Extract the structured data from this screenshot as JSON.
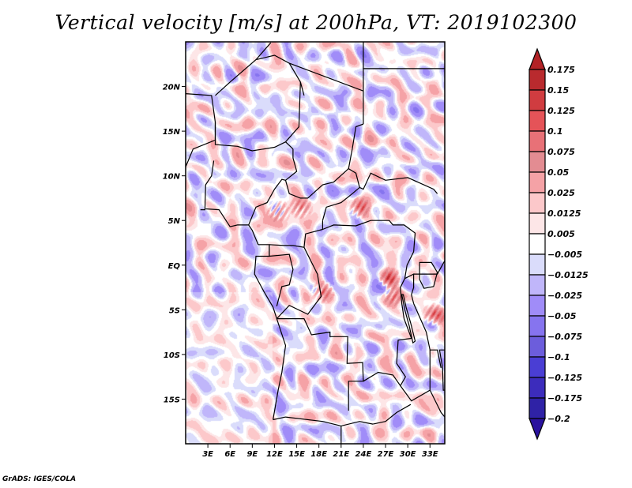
{
  "title": "Vertical velocity [m/s] at 200hPa, VT: 2019102300",
  "credit": "GrADS: IGES/COLA",
  "chart_data": {
    "type": "heatmap",
    "title": "Vertical velocity [m/s] at 200hPa, VT: 2019102300",
    "variable": "Vertical velocity",
    "units": "m/s",
    "level": "200hPa",
    "valid_time": "2019102300",
    "xlabel": "",
    "ylabel": "",
    "x_range": [
      0,
      35
    ],
    "y_range": [
      -20,
      25
    ],
    "x_ticks": [
      {
        "value": 3,
        "label": "3E"
      },
      {
        "value": 6,
        "label": "6E"
      },
      {
        "value": 9,
        "label": "9E"
      },
      {
        "value": 12,
        "label": "12E"
      },
      {
        "value": 15,
        "label": "15E"
      },
      {
        "value": 18,
        "label": "18E"
      },
      {
        "value": 21,
        "label": "21E"
      },
      {
        "value": 24,
        "label": "24E"
      },
      {
        "value": 27,
        "label": "27E"
      },
      {
        "value": 30,
        "label": "30E"
      },
      {
        "value": 33,
        "label": "33E"
      }
    ],
    "y_ticks": [
      {
        "value": 20,
        "label": "20N"
      },
      {
        "value": 15,
        "label": "15N"
      },
      {
        "value": 10,
        "label": "10N"
      },
      {
        "value": 5,
        "label": "5N"
      },
      {
        "value": 0,
        "label": "EQ"
      },
      {
        "value": -5,
        "label": "5S"
      },
      {
        "value": -10,
        "label": "10S"
      },
      {
        "value": -15,
        "label": "15S"
      }
    ],
    "colorbar": {
      "position": "right",
      "orientation": "vertical",
      "extend": "both",
      "levels": [
        0.175,
        0.15,
        0.125,
        0.1,
        0.075,
        0.05,
        0.025,
        0.0125,
        0.005,
        -0.005,
        -0.0125,
        -0.025,
        -0.05,
        -0.075,
        -0.1,
        -0.125,
        -0.175,
        -0.2
      ],
      "labels": [
        "0.175",
        "0.15",
        "0.125",
        "0.1",
        "0.075",
        "0.05",
        "0.025",
        "0.0125",
        "0.005",
        "−0.005",
        "−0.0125",
        "−0.025",
        "−0.05",
        "−0.075",
        "−0.1",
        "−0.125",
        "−0.175",
        "−0.2"
      ],
      "colors_top_to_bottom": [
        "#b22226",
        "#b92a2e",
        "#d03c40",
        "#e55358",
        "#e87177",
        "#e38c92",
        "#f5a2a6",
        "#fcc8ca",
        "#fde6e7",
        "#ffffff",
        "#dadcfb",
        "#c0b6fa",
        "#a08cf8",
        "#8674ef",
        "#6c5ddc",
        "#4a3ed4",
        "#3c2cbc",
        "#2f22a6",
        "#2a129e"
      ]
    },
    "features": [
      "country-borders",
      "coastlines",
      "lakes"
    ],
    "notable_maxima": [
      {
        "lon": 15.5,
        "lat": 6.5,
        "sign": "positive"
      },
      {
        "lon": 12.5,
        "lat": 6.0,
        "sign": "positive"
      },
      {
        "lon": 23.5,
        "lat": 6.5,
        "sign": "positive"
      },
      {
        "lon": 27.5,
        "lat": -1.5,
        "sign": "positive"
      },
      {
        "lon": 28.0,
        "lat": -3.5,
        "sign": "positive"
      },
      {
        "lon": 18.5,
        "lat": -3.0,
        "sign": "positive"
      },
      {
        "lon": 33.5,
        "lat": -5.5,
        "sign": "positive"
      }
    ]
  }
}
